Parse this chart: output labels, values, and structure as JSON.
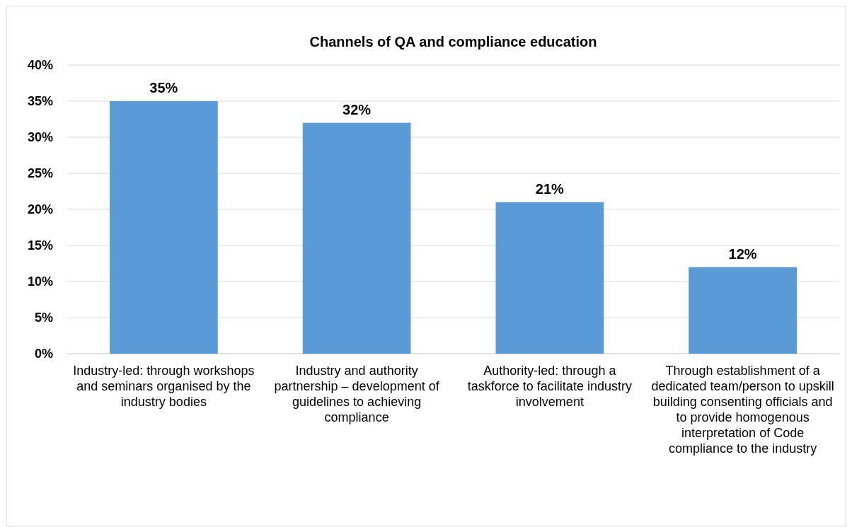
{
  "chart_data": {
    "type": "bar",
    "title": "Channels of QA and compliance education",
    "categories": [
      "Industry-led: through workshops and seminars organised by the industry bodies",
      "Industry and authority partnership – development of guidelines to achieving compliance",
      "Authority-led: through a taskforce to facilitate industry involvement",
      "Through establishment of a dedicated team/person to upskill building consenting officials and to provide homogenous interpretation of Code compliance to the industry"
    ],
    "values": [
      35,
      32,
      21,
      12
    ],
    "value_labels": [
      "35%",
      "32%",
      "21%",
      "12%"
    ],
    "color": "#5b9bd5",
    "ylim": [
      0,
      40
    ],
    "yticks": [
      {
        "value": 0,
        "label": "0%"
      },
      {
        "value": 5,
        "label": "5%"
      },
      {
        "value": 10,
        "label": "10%"
      },
      {
        "value": 15,
        "label": "15%"
      },
      {
        "value": 20,
        "label": "20%"
      },
      {
        "value": 25,
        "label": "25%"
      },
      {
        "value": 30,
        "label": "30%"
      },
      {
        "value": 35,
        "label": "35%"
      },
      {
        "value": 40,
        "label": "40%"
      }
    ],
    "grid": "y"
  }
}
